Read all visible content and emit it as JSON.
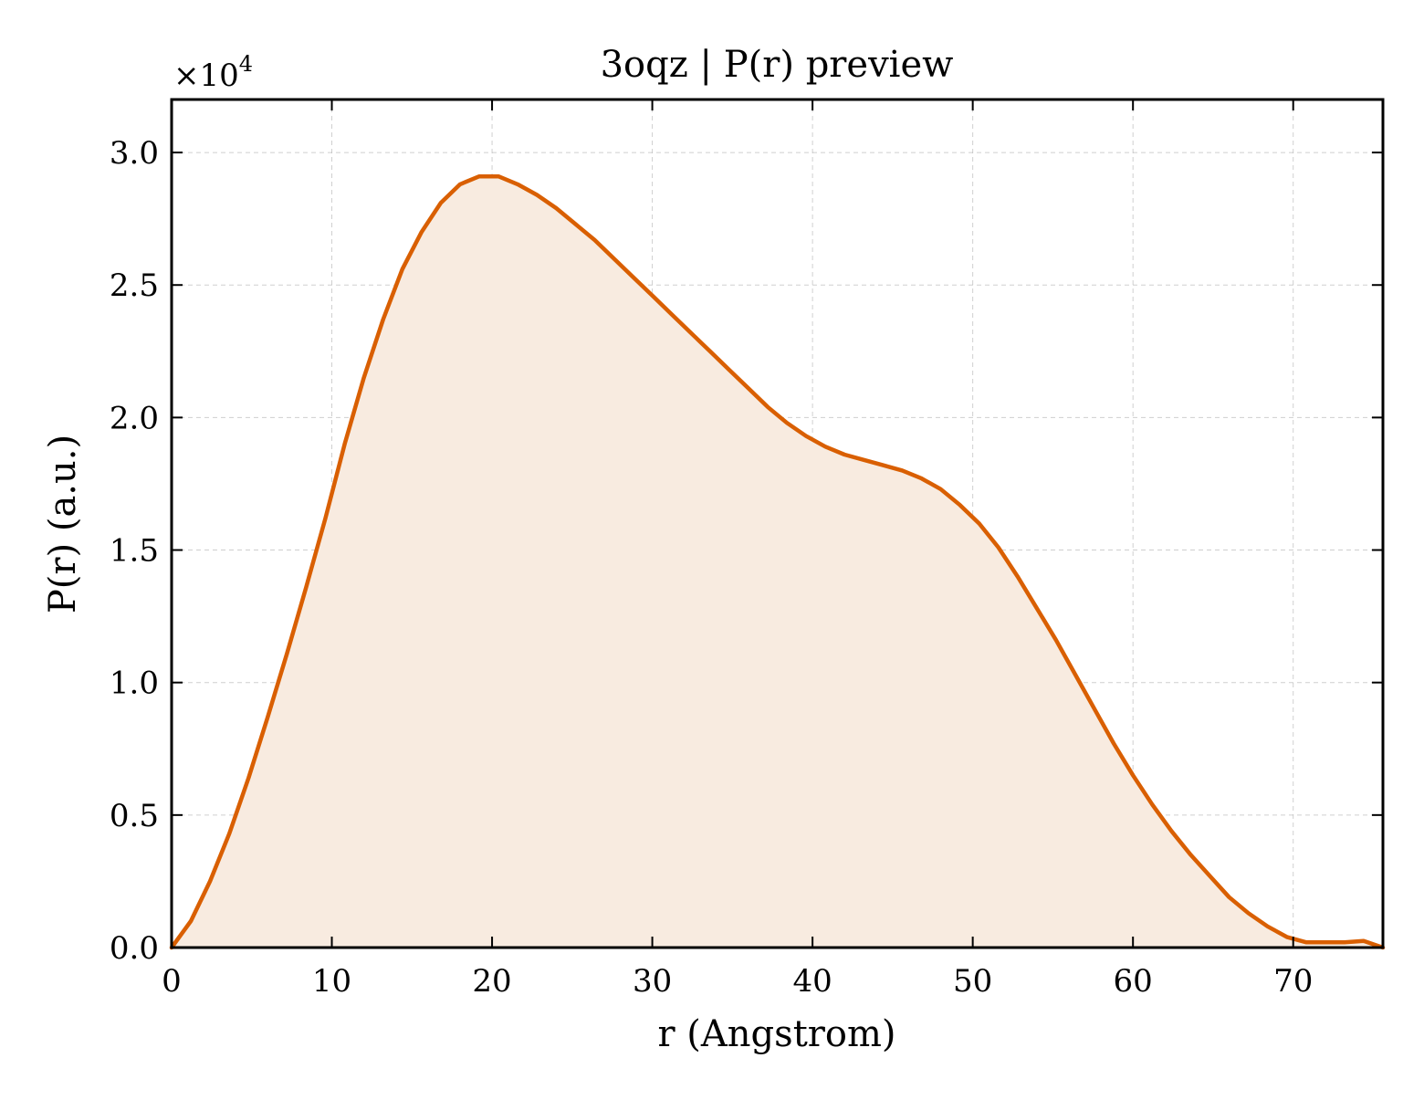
{
  "chart_data": {
    "type": "area",
    "title": "3oqz | P(r) preview",
    "xlabel": "r (Angstrom)",
    "ylabel": "P(r) (a.u.)",
    "offset_text": "×10",
    "offset_exponent": "4",
    "y_scale_multiplier": 10000,
    "xlim": [
      0,
      75.6
    ],
    "ylim": [
      0,
      3.2
    ],
    "x_ticks": [
      0,
      10,
      20,
      30,
      40,
      50,
      60,
      70
    ],
    "x_tick_labels": [
      "0",
      "10",
      "20",
      "30",
      "40",
      "50",
      "60",
      "70"
    ],
    "y_ticks": [
      0,
      0.5,
      1.0,
      1.5,
      2.0,
      2.5,
      3.0
    ],
    "y_tick_labels": [
      "0.0",
      "0.5",
      "1.0",
      "1.5",
      "2.0",
      "2.5",
      "3.0"
    ],
    "grid": true,
    "legend": "none",
    "line_color": "#d95f02",
    "fill_color": "#f8ebe0",
    "series": [
      {
        "x": [
          0,
          1.2,
          2.4,
          3.6,
          4.8,
          6.0,
          7.2,
          8.4,
          9.6,
          10.8,
          12.0,
          13.2,
          14.4,
          15.6,
          16.8,
          18.0,
          19.2,
          20.4,
          21.6,
          22.8,
          24.0,
          25.2,
          26.4,
          27.6,
          28.8,
          30.0,
          31.2,
          32.4,
          33.6,
          34.8,
          36.0,
          37.2,
          38.4,
          39.6,
          40.8,
          42.0,
          43.2,
          44.4,
          45.6,
          46.8,
          48.0,
          49.2,
          50.4,
          51.6,
          52.8,
          54.0,
          55.2,
          56.4,
          57.6,
          58.8,
          60.0,
          61.2,
          62.4,
          63.6,
          64.8,
          66.0,
          67.2,
          68.4,
          69.6,
          70.8,
          72.0,
          73.2,
          74.4,
          75.6
        ],
        "y": [
          0.0,
          0.1,
          0.25,
          0.43,
          0.64,
          0.87,
          1.11,
          1.36,
          1.62,
          1.9,
          2.15,
          2.37,
          2.56,
          2.7,
          2.81,
          2.88,
          2.91,
          2.91,
          2.88,
          2.84,
          2.79,
          2.73,
          2.67,
          2.6,
          2.53,
          2.46,
          2.39,
          2.32,
          2.25,
          2.18,
          2.11,
          2.04,
          1.98,
          1.93,
          1.89,
          1.86,
          1.84,
          1.82,
          1.8,
          1.77,
          1.73,
          1.67,
          1.6,
          1.51,
          1.4,
          1.28,
          1.16,
          1.03,
          0.9,
          0.77,
          0.65,
          0.54,
          0.44,
          0.35,
          0.27,
          0.19,
          0.13,
          0.08,
          0.04,
          0.02,
          0.02,
          0.02,
          0.025,
          0.0
        ]
      }
    ]
  }
}
